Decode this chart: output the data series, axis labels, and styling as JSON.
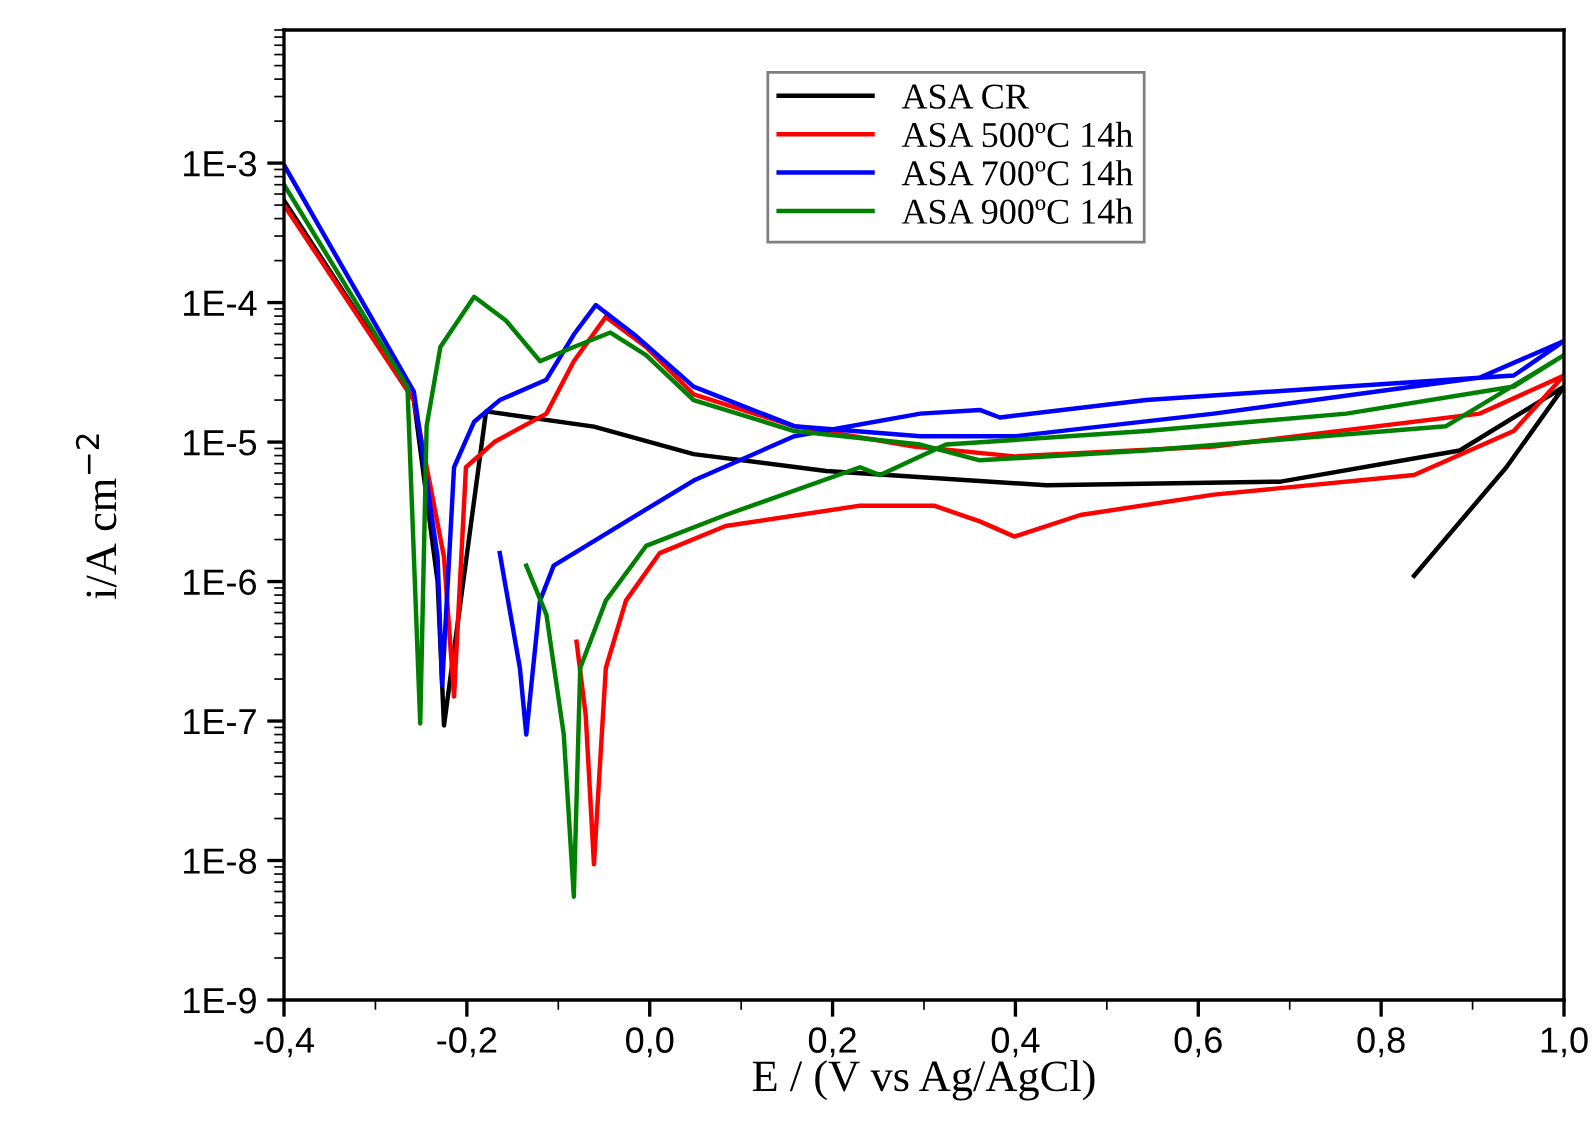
{
  "chart_data": {
    "type": "line",
    "xlabel": "E / (V vs Ag/AgCl)",
    "ylabel": "i/A cm$^{−2}$",
    "log": "y",
    "grid": false,
    "legend": "top",
    "marker": "none",
    "line_style": "solid",
    "xlim": [
      -0.4,
      1.0
    ],
    "xticks": [
      {
        "value": -0.4,
        "label": "-0,4"
      },
      {
        "value": -0.2,
        "label": "-0,2"
      },
      {
        "value": 0.0,
        "label": "0,0"
      },
      {
        "value": 0.2,
        "label": "0,2"
      },
      {
        "value": 0.4,
        "label": "0,4"
      },
      {
        "value": 0.6,
        "label": "0,6"
      },
      {
        "value": 0.8,
        "label": "0,8"
      },
      {
        "value": 1.0,
        "label": "1,0"
      }
    ],
    "ylim": [
      1e-09,
      0.009
    ],
    "yticks": [
      {
        "value": 1e-09,
        "label": "1E-9"
      },
      {
        "value": 1e-08,
        "label": "1E-8"
      },
      {
        "value": 1e-07,
        "label": "1E-7"
      },
      {
        "value": 1e-06,
        "label": "1E-6"
      },
      {
        "value": 1e-05,
        "label": "1E-5"
      },
      {
        "value": 0.0001,
        "label": "1E-4"
      },
      {
        "value": 0.001,
        "label": "1E-3"
      }
    ],
    "series": [
      {
        "name": "ASA CR",
        "color": "#000000",
        "x": [
          -0.4,
          -0.258,
          -0.232,
          -0.225,
          -0.179,
          -0.061,
          0.048,
          0.193,
          0.434,
          0.69,
          0.886,
          1.0,
          0.937,
          0.836
        ],
        "values": [
          0.00054,
          2e-05,
          1e-06,
          9.3e-08,
          1.66e-05,
          1.29e-05,
          8.2e-06,
          6.2e-06,
          4.9e-06,
          5.2e-06,
          8.7e-06,
          2.5e-05,
          6.6e-06,
          1.1e-06
        ]
      },
      {
        "name": "ASA 500ºC 14h",
        "color": "#ff0000",
        "x": [
          -0.4,
          -0.258,
          -0.225,
          -0.214,
          -0.201,
          -0.17,
          -0.113,
          -0.083,
          -0.048,
          -0.004,
          0.048,
          0.158,
          0.289,
          0.399,
          0.617,
          0.908,
          1.0,
          0.945,
          0.836,
          0.617,
          0.471,
          0.399,
          0.361,
          0.311,
          0.23,
          0.083,
          0.011,
          -0.026,
          -0.048,
          -0.061,
          -0.07,
          -0.08
        ],
        "values": [
          0.0005,
          2e-05,
          1.5e-06,
          1.5e-07,
          6.6e-06,
          1e-05,
          1.6e-05,
          3.8e-05,
          7.9e-05,
          4.8e-05,
          2.2e-05,
          1.3e-05,
          9.3e-06,
          7.9e-06,
          9.3e-06,
          1.6e-05,
          3e-05,
          1.2e-05,
          5.8e-06,
          4.2e-06,
          3e-06,
          2.1e-06,
          2.7e-06,
          3.5e-06,
          3.5e-06,
          2.5e-06,
          1.6e-06,
          7.3e-07,
          2.4e-07,
          9.4e-09,
          1.1e-07,
          3.7e-07
        ]
      },
      {
        "name": "ASA 700ºC 14h",
        "color": "#0000ff",
        "x": [
          -0.4,
          -0.258,
          -0.232,
          -0.227,
          -0.214,
          -0.192,
          -0.164,
          -0.113,
          -0.083,
          -0.059,
          -0.017,
          0.048,
          0.158,
          0.296,
          0.399,
          0.617,
          0.908,
          1.0,
          0.945,
          0.762,
          0.543,
          0.383,
          0.361,
          0.296,
          0.158,
          0.048,
          -0.048,
          -0.105,
          -0.12,
          -0.135,
          -0.142,
          -0.164
        ],
        "values": [
          0.00097,
          2.3e-05,
          1.5e-06,
          1.8e-07,
          6.6e-06,
          1.4e-05,
          2e-05,
          2.8e-05,
          5.9e-05,
          9.6e-05,
          5.9e-05,
          2.5e-05,
          1.3e-05,
          1.1e-05,
          1.1e-05,
          1.6e-05,
          2.9e-05,
          5.3e-05,
          3e-05,
          2.5e-05,
          2e-05,
          1.5e-05,
          1.7e-05,
          1.6e-05,
          1.1e-05,
          5.3e-06,
          2.2e-06,
          1.3e-06,
          7.3e-07,
          8e-08,
          2.4e-07,
          1.6e-06
        ]
      },
      {
        "name": "ASA 900ºC 14h",
        "color": "#008000",
        "x": [
          -0.4,
          -0.265,
          -0.251,
          -0.244,
          -0.229,
          -0.192,
          -0.157,
          -0.12,
          -0.083,
          -0.043,
          -0.004,
          0.048,
          0.158,
          0.296,
          0.361,
          0.543,
          0.871,
          1.0,
          0.945,
          0.762,
          0.543,
          0.324,
          0.252,
          0.23,
          0.083,
          -0.004,
          -0.048,
          -0.076,
          -0.083,
          -0.094,
          -0.113,
          -0.135
        ],
        "values": [
          0.0007,
          2.5e-05,
          9.6e-08,
          1.3e-05,
          4.8e-05,
          0.00011,
          7.4e-05,
          3.8e-05,
          4.8e-05,
          6.1e-05,
          4.2e-05,
          2e-05,
          1.2e-05,
          9.6e-06,
          7.4e-06,
          8.7e-06,
          1.3e-05,
          4.2e-05,
          2.5e-05,
          1.6e-05,
          1.2e-05,
          9.6e-06,
          5.8e-06,
          6.6e-06,
          3e-06,
          1.8e-06,
          7.3e-07,
          2.4e-07,
          5.5e-09,
          8e-08,
          5.8e-07,
          1.3e-06
        ]
      }
    ]
  }
}
